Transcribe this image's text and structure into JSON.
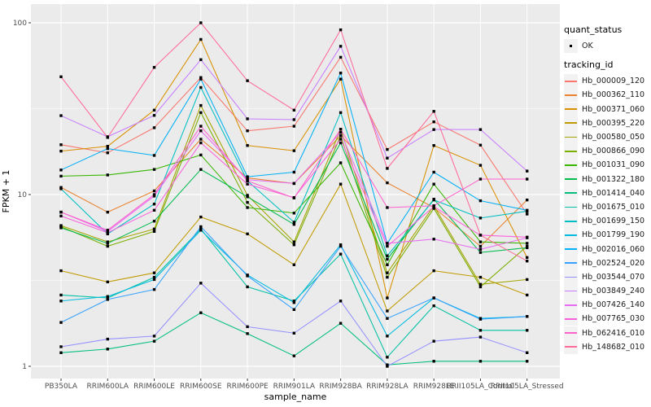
{
  "chart_data": {
    "type": "line",
    "title": "",
    "xlabel": "sample_name",
    "ylabel": "FPKM + 1",
    "y_scale": "log10",
    "y_tick_values": [
      1,
      10,
      100
    ],
    "y_tick_labels": [
      "1",
      "10",
      "100"
    ],
    "y_minor_values": [
      3.162,
      31.62
    ],
    "ylim": [
      0.85,
      128
    ],
    "grid": true,
    "panel_bg": "#EBEBEB",
    "grid_color": "#FFFFFF",
    "tick_color": "#333333",
    "tick_label_color": "#4D4D4D",
    "point_color": "#000000",
    "legend_position": "right",
    "categories": [
      "PB350LA",
      "RRIM600LA",
      "RRIM600LE",
      "RRIM600SE",
      "RRIM600PE",
      "RRIM901LA",
      "RRIM928BA",
      "RRIM928LA",
      "RRIM928LE",
      "RRII105LA_Control",
      "RRII105LA_Stressed"
    ],
    "series": [
      {
        "name": "Hb_000009_120",
        "color": "#F8766D",
        "values": [
          19.5,
          17.5,
          24.5,
          48,
          23.5,
          25,
          63,
          18.3,
          26.5,
          19.4,
          7.7
        ]
      },
      {
        "name": "Hb_000362_110",
        "color": "#EA8331",
        "values": [
          11.0,
          7.9,
          10.5,
          21,
          12.5,
          11.6,
          22,
          11.7,
          8.4,
          5.0,
          9.3
        ]
      },
      {
        "name": "Hb_000371_060",
        "color": "#D89000",
        "values": [
          17.9,
          19.1,
          31,
          80,
          19.3,
          18,
          47,
          2.5,
          19.3,
          14.8,
          4.3
        ]
      },
      {
        "name": "Hb_000395_220",
        "color": "#C09B00",
        "values": [
          3.6,
          3.1,
          3.5,
          7.4,
          5.9,
          3.9,
          11.5,
          2.1,
          3.6,
          3.3,
          2.6
        ]
      },
      {
        "name": "Hb_000580_050",
        "color": "#A3A500",
        "values": [
          6.6,
          5.3,
          6.3,
          33,
          9.9,
          5.3,
          24,
          3.5,
          8.6,
          3.0,
          3.2
        ]
      },
      {
        "name": "Hb_000866_090",
        "color": "#7CAE00",
        "values": [
          6.5,
          5.0,
          6.1,
          30,
          9.0,
          5.1,
          22,
          3.3,
          8.3,
          2.9,
          5.0
        ]
      },
      {
        "name": "Hb_001031_090",
        "color": "#39B600",
        "values": [
          12.8,
          13.0,
          14.0,
          17,
          8.4,
          7.8,
          15.3,
          3.9,
          11.5,
          5.3,
          5.2
        ]
      },
      {
        "name": "Hb_001322_180",
        "color": "#00BB4E",
        "values": [
          6.4,
          5.2,
          7.0,
          14,
          9.7,
          6.7,
          20,
          4.2,
          9.4,
          4.6,
          4.9
        ]
      },
      {
        "name": "Hb_001414_040",
        "color": "#00BF7D",
        "values": [
          1.2,
          1.26,
          1.4,
          2.05,
          1.55,
          1.15,
          1.78,
          1.02,
          1.07,
          1.07,
          1.07
        ]
      },
      {
        "name": "Hb_001675_010",
        "color": "#00C1A3",
        "values": [
          2.6,
          2.5,
          3.3,
          6.3,
          2.9,
          2.4,
          4.5,
          1.13,
          2.25,
          1.62,
          1.62
        ]
      },
      {
        "name": "Hb_001699_150",
        "color": "#00BFC4",
        "values": [
          10.8,
          5.9,
          8.8,
          42,
          12.0,
          6.9,
          30,
          4.4,
          9.3,
          7.3,
          8.0
        ]
      },
      {
        "name": "Hb_001799_190",
        "color": "#00BAE0",
        "values": [
          2.4,
          2.55,
          3.2,
          6.2,
          3.4,
          2.35,
          5.1,
          1.5,
          2.5,
          1.9,
          1.95
        ]
      },
      {
        "name": "Hb_002016_060",
        "color": "#00B0F6",
        "values": [
          13.9,
          18.5,
          16.9,
          47,
          12.7,
          13.5,
          51,
          5.2,
          13.5,
          9.2,
          8.1
        ]
      },
      {
        "name": "Hb_002524_020",
        "color": "#35A2FF",
        "values": [
          1.8,
          2.45,
          2.8,
          6.5,
          3.36,
          2.14,
          5.0,
          1.9,
          2.5,
          1.88,
          1.95
        ]
      },
      {
        "name": "Hb_003544_070",
        "color": "#9590FF",
        "values": [
          1.3,
          1.44,
          1.5,
          3.05,
          1.7,
          1.56,
          2.4,
          1.0,
          1.4,
          1.48,
          1.2
        ]
      },
      {
        "name": "Hb_003849_240",
        "color": "#C77CFF",
        "values": [
          28.8,
          21.7,
          28.9,
          61,
          27.6,
          27.3,
          73,
          16.3,
          23.9,
          23.9,
          13.7
        ]
      },
      {
        "name": "Hb_007426_140",
        "color": "#E76BF3",
        "values": [
          7.9,
          6.1,
          9.8,
          23.5,
          12.2,
          11.6,
          23,
          5.2,
          5.5,
          4.8,
          5.6
        ]
      },
      {
        "name": "Hb_007765_030",
        "color": "#FA62DB",
        "values": [
          7.5,
          6.0,
          8.1,
          20,
          11.5,
          9.6,
          21,
          5.0,
          8.5,
          5.8,
          5.65
        ]
      },
      {
        "name": "Hb_062416_010",
        "color": "#FF61CC",
        "values": [
          7.9,
          6.2,
          10.0,
          25,
          12.0,
          9.55,
          24,
          8.4,
          8.6,
          12.3,
          12.3
        ]
      },
      {
        "name": "Hb_148682_010",
        "color": "#FF6A98",
        "values": [
          48.5,
          21.5,
          55,
          100,
          46,
          31,
          91,
          14.2,
          30.5,
          5.8,
          4.1
        ]
      }
    ]
  },
  "legend": {
    "quant_title": "quant_status",
    "quant_items": [
      {
        "label": "OK",
        "symbol": "black-point"
      }
    ],
    "tracking_title": "tracking_id",
    "key_bg": "#F2F2F2"
  }
}
